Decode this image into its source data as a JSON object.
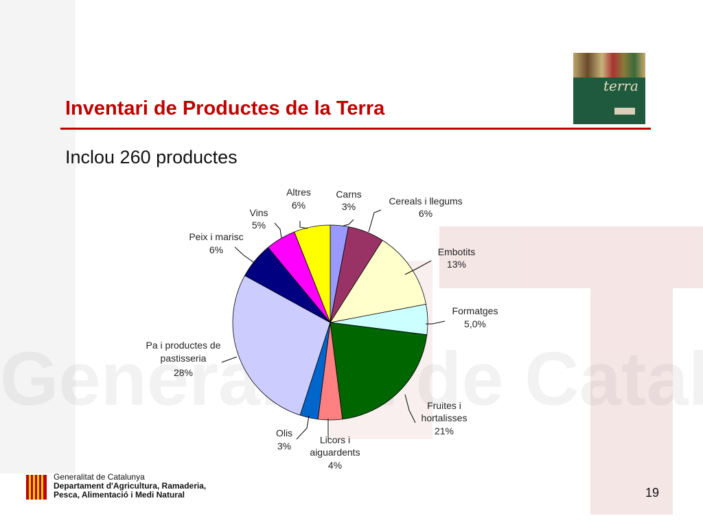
{
  "slide": {
    "title": "Inventari de Productes de la Terra",
    "subtitle": "Inclou 260 productes",
    "logo_word": "terra",
    "page_number": "19"
  },
  "footer": {
    "org": "Generalitat de Catalunya",
    "dept_line1": "Departament d'Agricultura, Ramaderia,",
    "dept_line2": "Pesca, Alimentació i Medi Natural"
  },
  "colors": {
    "title": "#c00000",
    "rule": "#c00000"
  },
  "chart_data": {
    "type": "pie",
    "title": "",
    "slices": [
      {
        "name": "Carns",
        "value": 3,
        "label": "3%",
        "color": "#9999ff"
      },
      {
        "name": "Cereals i llegums",
        "value": 6,
        "label": "6%",
        "color": "#993366"
      },
      {
        "name": "Embotits",
        "value": 13,
        "label": "13%",
        "color": "#ffffcc"
      },
      {
        "name": "Formatges",
        "value": 5,
        "label": "5,0%",
        "color": "#ccffff"
      },
      {
        "name": "Fruites i hortalisses",
        "value": 21,
        "label": "21%",
        "color": "#006600"
      },
      {
        "name": "Licors i aiguardents",
        "value": 4,
        "label": "4%",
        "color": "#ff8080"
      },
      {
        "name": "Olis",
        "value": 3,
        "label": "3%",
        "color": "#0066cc"
      },
      {
        "name": "Pa i productes de pastisseria",
        "value": 28,
        "label": "28%",
        "color": "#ccccff"
      },
      {
        "name": "Peix i marisc",
        "value": 6,
        "label": "6%",
        "color": "#000080"
      },
      {
        "name": "Vins",
        "value": 5,
        "label": "5%",
        "color": "#ff00ff"
      },
      {
        "name": "Altres",
        "value": 6,
        "label": "6%",
        "color": "#ffff00"
      }
    ],
    "legend": "none"
  }
}
